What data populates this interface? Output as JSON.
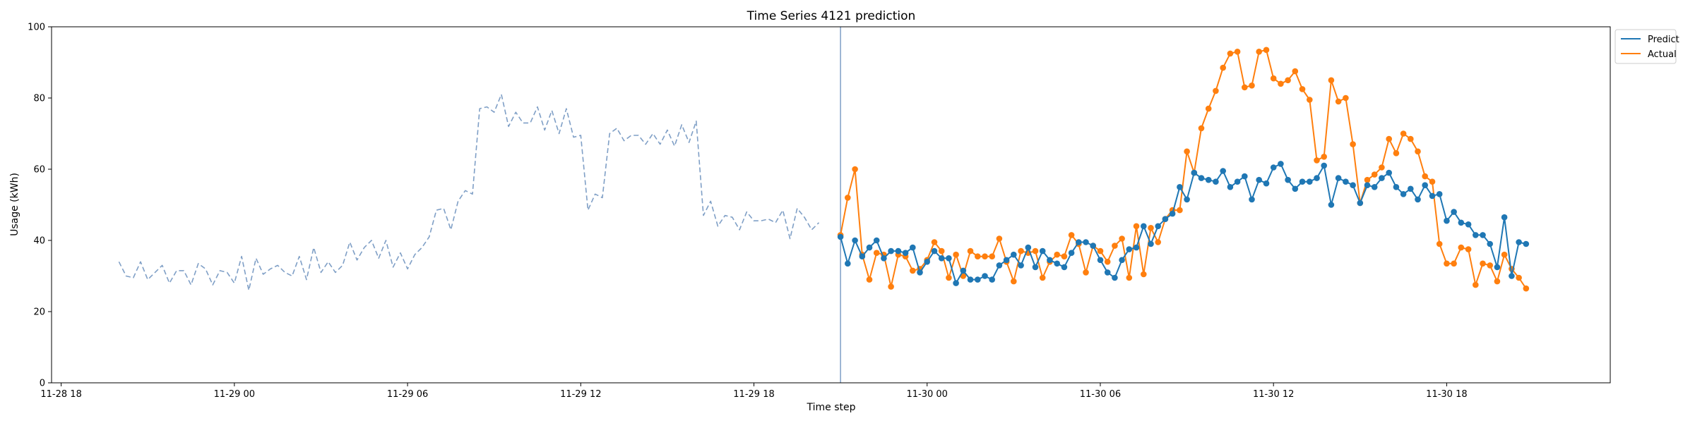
{
  "chart_data": {
    "type": "line",
    "title": "Time Series 4121 prediction",
    "xlabel": "Time step",
    "ylabel": "Usage (kWh)",
    "ylim": [
      0,
      100
    ],
    "xlim": [
      "2023-11-28 17:40",
      "2023-11-30 23:40"
    ],
    "x_step_minutes": 15,
    "yticks": [
      0,
      20,
      40,
      60,
      80,
      100
    ],
    "xticks": [
      {
        "t": "2023-11-28 18:00",
        "label": "11-28 18"
      },
      {
        "t": "2023-11-29 00:00",
        "label": "11-29 00"
      },
      {
        "t": "2023-11-29 06:00",
        "label": "11-29 06"
      },
      {
        "t": "2023-11-29 12:00",
        "label": "11-29 12"
      },
      {
        "t": "2023-11-29 18:00",
        "label": "11-29 18"
      },
      {
        "t": "2023-11-30 00:00",
        "label": "11-30 00"
      },
      {
        "t": "2023-11-30 06:00",
        "label": "11-30 06"
      },
      {
        "t": "2023-11-30 12:00",
        "label": "11-30 12"
      },
      {
        "t": "2023-11-30 18:00",
        "label": "11-30 18"
      }
    ],
    "forecast_start": "2023-11-29 21:00",
    "legend_position": "top-right",
    "grid": false,
    "series": [
      {
        "key": "history",
        "color": "#7f9fc6",
        "dashed": true,
        "markers": false,
        "start": "2023-11-28 20:00",
        "values": [
          34,
          30,
          29.5,
          34,
          29,
          31,
          33,
          28,
          31.5,
          31.5,
          27.5,
          33.5,
          32,
          27.5,
          31.5,
          31,
          28,
          35.5,
          26,
          35,
          30.5,
          32,
          33,
          31,
          30,
          35.5,
          29,
          38,
          31,
          34,
          31,
          33,
          39.5,
          34.5,
          38,
          40,
          35,
          40,
          32.5,
          36.5,
          32,
          36,
          38,
          41,
          48.5,
          49,
          43,
          51,
          54,
          53,
          77,
          77.5,
          76,
          81,
          72,
          76,
          73,
          73,
          77.5,
          71,
          76.5,
          70,
          77,
          69,
          69.5,
          48.5,
          53,
          52,
          70,
          71.5,
          68,
          69.5,
          69.5,
          67,
          70,
          67,
          71,
          66.5,
          72.5,
          67.5,
          73.5,
          47,
          51,
          44,
          47,
          46.5,
          43,
          48,
          45.5,
          45.5,
          46,
          45,
          48.5,
          40.5,
          49,
          46.5,
          43,
          45
        ]
      },
      {
        "key": "actual",
        "name": "Actual",
        "color": "#ff7f0e",
        "dashed": false,
        "markers": true,
        "start": "2023-11-29 21:00",
        "values": [
          41.5,
          52,
          60,
          36,
          29,
          36.5,
          36,
          27,
          36,
          35.5,
          31.5,
          32,
          34.5,
          39.5,
          37,
          29.5,
          36,
          30,
          37,
          35.5,
          35.5,
          35.5,
          40.5,
          34,
          28.5,
          37,
          36.5,
          37,
          29.5,
          34,
          36,
          35.5,
          41.5,
          39,
          31,
          38.5,
          37,
          34,
          38.5,
          40.5,
          29.5,
          44,
          30.5,
          43.5,
          39.5,
          46,
          48.5,
          48.5,
          65,
          59,
          71.5,
          77,
          82,
          88.5,
          92.5,
          93,
          83,
          83.5,
          93,
          93.5,
          85.5,
          84,
          85,
          87.5,
          82.5,
          79.5,
          62.5,
          63.5,
          85,
          79,
          80,
          67,
          50.5,
          57,
          58.5,
          60.5,
          68.5,
          64.5,
          70,
          68.5,
          65,
          58,
          56.5,
          39,
          33.5,
          33.5,
          38,
          37.5,
          27.5,
          33.5,
          33,
          28.5,
          36,
          32,
          29.5,
          26.5
        ]
      },
      {
        "key": "predict",
        "name": "Predict",
        "color": "#1f77b4",
        "dashed": false,
        "markers": true,
        "start": "2023-11-29 21:00",
        "values": [
          41,
          33.5,
          40,
          35.5,
          38,
          40,
          35,
          37,
          37,
          36.5,
          38,
          31,
          34,
          37,
          35,
          35,
          28,
          31.5,
          29,
          29,
          30,
          29,
          33,
          34.5,
          36,
          33,
          38,
          32.5,
          37,
          34.5,
          33.5,
          32.5,
          36.5,
          39.5,
          39.5,
          38.5,
          34.5,
          31,
          29.5,
          34.5,
          37.5,
          38,
          44,
          39,
          44,
          46,
          47.5,
          55,
          51.5,
          59,
          57.5,
          57,
          56.5,
          59.5,
          55,
          56.5,
          58,
          51.5,
          57,
          56,
          60.5,
          61.5,
          57,
          54.5,
          56.5,
          56.5,
          57.5,
          61,
          50,
          57.5,
          56.5,
          55.5,
          50.5,
          55.5,
          55,
          57.5,
          59,
          55,
          53,
          54.5,
          51.5,
          55.5,
          52.5,
          53,
          45.5,
          48,
          45,
          44.5,
          41.5,
          41.5,
          39,
          32.5,
          46.5,
          30,
          39.5,
          39
        ]
      }
    ],
    "legend": [
      {
        "label": "Predict",
        "color": "#1f77b4"
      },
      {
        "label": "Actual",
        "color": "#ff7f0e"
      }
    ]
  }
}
